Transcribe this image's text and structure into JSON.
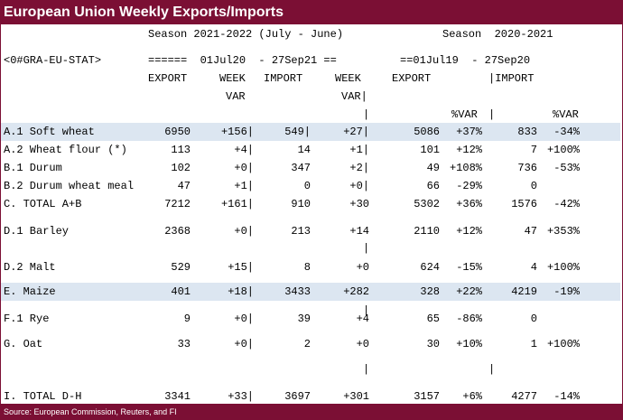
{
  "title": "European Union Weekly Exports/Imports",
  "season_left": "Season 2021-2022 (July - June)",
  "season_right": "Season  2020-2021",
  "ric": "<0#GRA-EU-STAT>",
  "range_left": "======  01Jul20  - 27Sep21 ==",
  "range_right": "==01Jul19  - 27Sep20",
  "headers": {
    "export": "EXPORT",
    "week": "WEEK",
    "var": "VAR",
    "import": "IMPORT",
    "week2": "WEEK",
    "var2": "VAR|",
    "export2": "EXPORT",
    "import2": "|IMPORT",
    "pvar1": "%VAR",
    "pvar2": "%VAR"
  },
  "rows": [
    {
      "label": "A.1 Soft wheat",
      "exp": "6950",
      "wvar": "+156|",
      "imp": "549|",
      "wvar2": "+27|",
      "exp2": "5086",
      "pvar": "+37%",
      "imp2": "833",
      "pvar2": "-34%",
      "highlight": true
    },
    {
      "label": "A.2 Wheat flour (*)",
      "exp": "113",
      "wvar": "+4|",
      "imp": "14",
      "wvar2": "+1|",
      "exp2": "101",
      "pvar": "+12%",
      "imp2": "7",
      "pvar2": "+100%"
    },
    {
      "label": "B.1 Durum",
      "exp": "102",
      "wvar": "+0|",
      "imp": "347",
      "wvar2": "+2|",
      "exp2": "49",
      "pvar": "+108%",
      "imp2": "736",
      "pvar2": "-53%"
    },
    {
      "label": "B.2 Durum wheat meal",
      "exp": "47",
      "wvar": "+1|",
      "imp": "0",
      "wvar2": "+0|",
      "exp2": "66",
      "pvar": "-29%",
      "imp2": "0",
      "pvar2": ""
    },
    {
      "label": "C. TOTAL A+B",
      "exp": "7212",
      "wvar": "+161|",
      "imp": "910",
      "wvar2": "+30",
      "exp2": "5302",
      "pvar": "+36%",
      "imp2": "1576",
      "pvar2": "-42%"
    },
    {
      "label": "D.1 Barley",
      "exp": "2368",
      "wvar": "+0|",
      "imp": "213",
      "wvar2": "+14",
      "exp2": "2110",
      "pvar": "+12%",
      "imp2": "47",
      "pvar2": "+353%"
    },
    {
      "label": "D.2 Malt",
      "exp": "529",
      "wvar": "+15|",
      "imp": "8",
      "wvar2": "+0",
      "exp2": "624",
      "pvar": "-15%",
      "imp2": "4",
      "pvar2": "+100%"
    },
    {
      "label": "E. Maize",
      "exp": "401",
      "wvar": "+18|",
      "imp": "3433",
      "wvar2": "+282",
      "exp2": "328",
      "pvar": "+22%",
      "imp2": "4219",
      "pvar2": "-19%",
      "highlight": true
    },
    {
      "label": "F.1 Rye",
      "exp": "9",
      "wvar": "+0|",
      "imp": "39",
      "wvar2": "+4",
      "exp2": "65",
      "pvar": "-86%",
      "imp2": "0",
      "pvar2": ""
    },
    {
      "label": "G. Oat",
      "exp": "33",
      "wvar": "+0|",
      "imp": "2",
      "wvar2": "+0",
      "exp2": "30",
      "pvar": "+10%",
      "imp2": "1",
      "pvar2": "+100%"
    },
    {
      "label": "I. TOTAL D-H",
      "exp": "3341",
      "wvar": "+33|",
      "imp": "3697",
      "wvar2": "+301",
      "exp2": "3157",
      "pvar": "+6%",
      "imp2": "4277",
      "pvar2": "-14%"
    }
  ],
  "separator": "|",
  "source": "Source: European Commission, Reuters, and FI"
}
